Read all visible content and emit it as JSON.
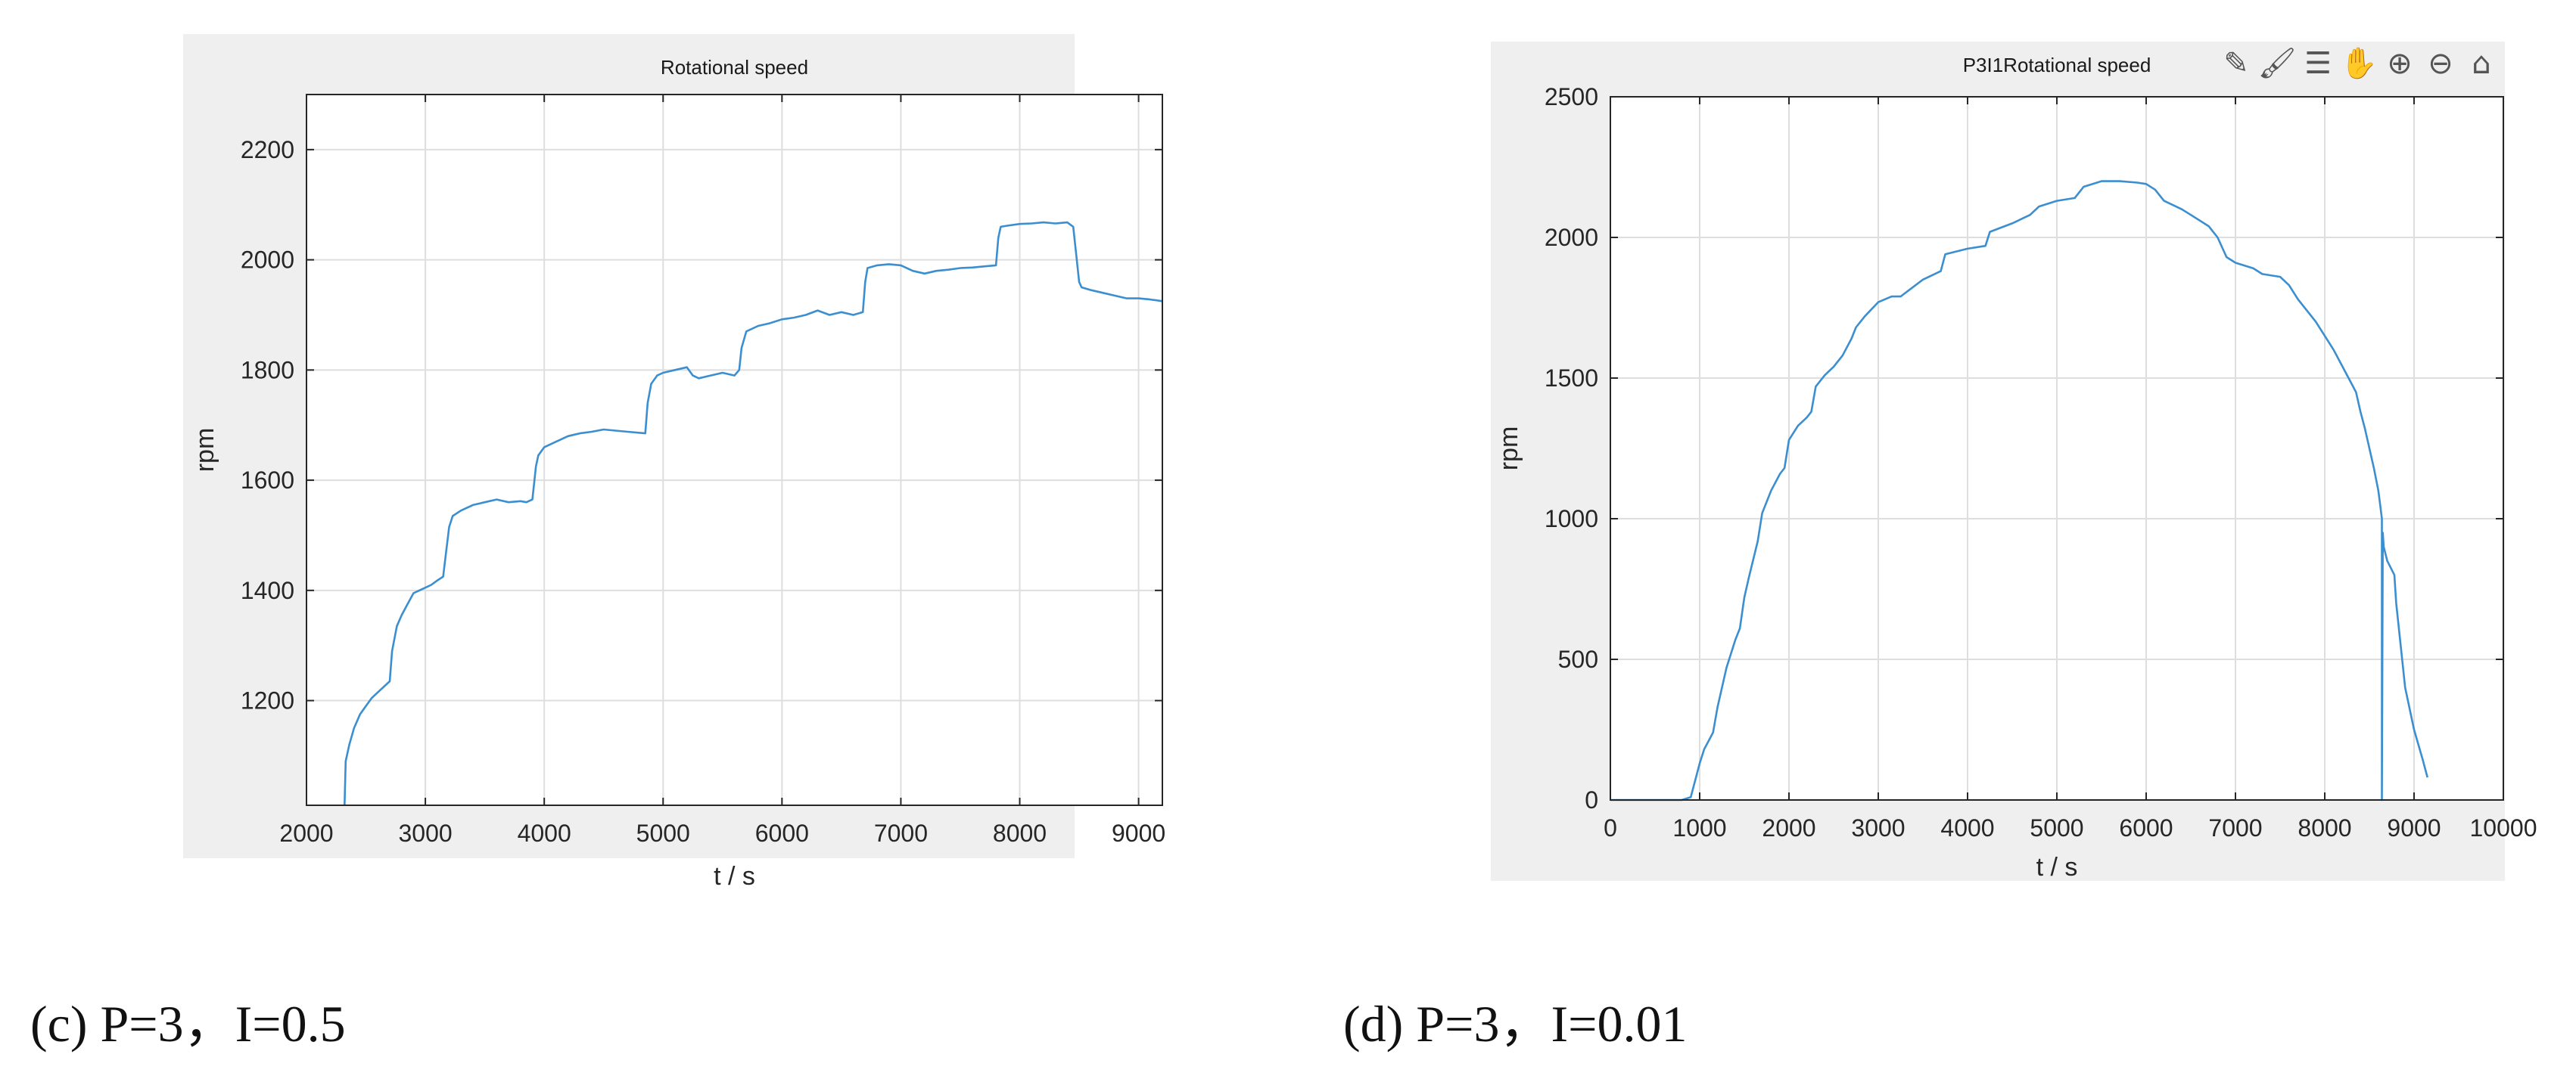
{
  "captions": {
    "c": "(c) P=3，I=0.5",
    "d": "(d) P=3，I=0.01"
  },
  "colors": {
    "figure_bg": "#efefef",
    "axes_bg": "#ffffff",
    "line": "#3b8fd0",
    "grid": "#dedede",
    "axis": "#262626"
  },
  "toolbar_icons": [
    "edit-icon",
    "brush-icon",
    "legend-icon",
    "pan-icon",
    "zoom-in-icon",
    "zoom-out-icon",
    "home-icon"
  ],
  "chart_data": [
    {
      "type": "line",
      "title": "Rotational speed",
      "xlabel": "t / s",
      "ylabel": "rpm",
      "xlim": [
        2000,
        9200
      ],
      "ylim": [
        1010,
        2300
      ],
      "xticks": [
        2000,
        3000,
        4000,
        5000,
        6000,
        7000,
        8000,
        9000
      ],
      "yticks": [
        1200,
        1400,
        1600,
        1800,
        2000,
        2200
      ],
      "grid": true,
      "series": [
        {
          "x": [
            2320,
            2330,
            2360,
            2400,
            2450,
            2500,
            2550,
            2600,
            2650,
            2700,
            2720,
            2760,
            2800,
            2850,
            2900,
            2950,
            3000,
            3050,
            3100,
            3150,
            3180,
            3200,
            3230,
            3300,
            3400,
            3500,
            3600,
            3700,
            3800,
            3850,
            3900,
            3930,
            3950,
            4000,
            4100,
            4200,
            4300,
            4400,
            4500,
            4600,
            4700,
            4850,
            4870,
            4900,
            4950,
            5000,
            5100,
            5200,
            5250,
            5300,
            5400,
            5500,
            5600,
            5640,
            5660,
            5700,
            5800,
            5900,
            6000,
            6100,
            6200,
            6300,
            6400,
            6500,
            6600,
            6680,
            6700,
            6720,
            6800,
            6900,
            7000,
            7100,
            7200,
            7300,
            7400,
            7500,
            7600,
            7700,
            7800,
            7820,
            7840,
            7900,
            8000,
            8100,
            8200,
            8300,
            8400,
            8450,
            8480,
            8500,
            8520,
            8600,
            8700,
            8800,
            8900,
            9000,
            9100,
            9200
          ],
          "values": [
            1010,
            1090,
            1120,
            1150,
            1175,
            1190,
            1205,
            1215,
            1225,
            1235,
            1290,
            1335,
            1355,
            1375,
            1395,
            1400,
            1405,
            1410,
            1418,
            1425,
            1480,
            1515,
            1535,
            1545,
            1555,
            1560,
            1565,
            1560,
            1562,
            1560,
            1565,
            1625,
            1645,
            1660,
            1670,
            1680,
            1685,
            1688,
            1692,
            1690,
            1688,
            1685,
            1740,
            1775,
            1790,
            1795,
            1800,
            1805,
            1790,
            1785,
            1790,
            1795,
            1790,
            1800,
            1840,
            1870,
            1880,
            1885,
            1892,
            1895,
            1900,
            1908,
            1900,
            1905,
            1900,
            1905,
            1960,
            1985,
            1990,
            1992,
            1990,
            1980,
            1975,
            1980,
            1982,
            1985,
            1986,
            1988,
            1990,
            2040,
            2060,
            2062,
            2065,
            2066,
            2068,
            2066,
            2068,
            2060,
            2000,
            1960,
            1950,
            1945,
            1940,
            1935,
            1930,
            1930,
            1928,
            1925
          ]
        }
      ]
    },
    {
      "type": "line",
      "title": "P3I1Rotational speed",
      "xlabel": "t / s",
      "ylabel": "rpm",
      "xlim": [
        0,
        10000
      ],
      "ylim": [
        0,
        2500
      ],
      "xticks": [
        0,
        1000,
        2000,
        3000,
        4000,
        5000,
        6000,
        7000,
        8000,
        9000,
        10000
      ],
      "yticks": [
        0,
        500,
        1000,
        1500,
        2000,
        2500
      ],
      "grid": true,
      "series": [
        {
          "x": [
            0,
            800,
            900,
            950,
            1000,
            1050,
            1100,
            1150,
            1200,
            1300,
            1400,
            1450,
            1500,
            1550,
            1650,
            1700,
            1800,
            1900,
            1950,
            2000,
            2100,
            2200,
            2250,
            2300,
            2400,
            2500,
            2600,
            2700,
            2750,
            2850,
            3000,
            3150,
            3250,
            3500,
            3700,
            3750,
            4000,
            4200,
            4250,
            4500,
            4700,
            4800,
            5000,
            5200,
            5300,
            5500,
            5700,
            5900,
            6000,
            6100,
            6200,
            6400,
            6500,
            6700,
            6800,
            6900,
            7000,
            7200,
            7300,
            7500,
            7600,
            7700,
            7800,
            7900,
            8000,
            8100,
            8200,
            8300,
            8350,
            8400,
            8450,
            8500,
            8550,
            8600,
            8620,
            8640,
            8640,
            8650,
            8660,
            8700,
            8780,
            8800,
            8850,
            8900,
            9000,
            9100,
            9150
          ],
          "values": [
            0,
            0,
            10,
            70,
            130,
            180,
            210,
            240,
            330,
            470,
            570,
            610,
            720,
            790,
            920,
            1020,
            1100,
            1160,
            1180,
            1280,
            1330,
            1360,
            1380,
            1470,
            1510,
            1540,
            1580,
            1640,
            1680,
            1720,
            1770,
            1790,
            1790,
            1850,
            1880,
            1940,
            1960,
            1970,
            2020,
            2050,
            2080,
            2110,
            2130,
            2140,
            2180,
            2200,
            2200,
            2195,
            2190,
            2170,
            2130,
            2100,
            2080,
            2040,
            2000,
            1930,
            1910,
            1890,
            1870,
            1860,
            1830,
            1780,
            1740,
            1700,
            1650,
            1600,
            1540,
            1480,
            1450,
            1380,
            1320,
            1250,
            1180,
            1100,
            1050,
            1000,
            0,
            950,
            900,
            850,
            800,
            700,
            550,
            400,
            250,
            140,
            80
          ]
        }
      ]
    }
  ]
}
